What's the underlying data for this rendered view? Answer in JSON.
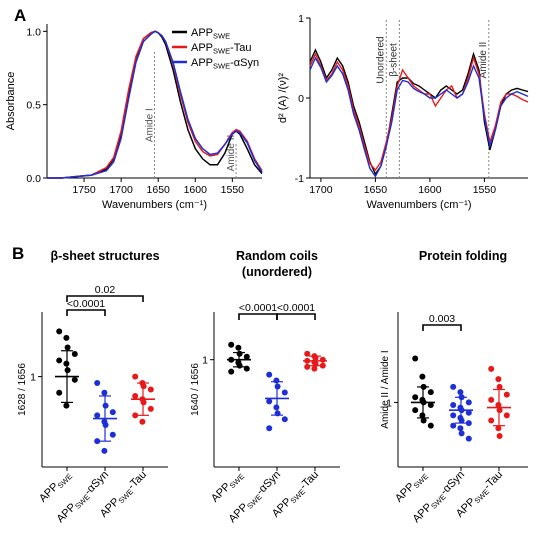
{
  "panel_labels": {
    "a": "A",
    "b": "B"
  },
  "colors": {
    "black": "#000000",
    "red": "#e8191b",
    "blue": "#1e2fd6",
    "grey": "#888888"
  },
  "chart_data": [
    {
      "id": "absorbance",
      "type": "line",
      "ylabel": "Absorbance",
      "xlabel": "Wavenumbers (cm⁻¹)",
      "xlim": [
        1800,
        1510
      ],
      "xticks": [
        1750,
        1700,
        1650,
        1600,
        1550
      ],
      "xtick_labels": [
        "1750",
        "1700",
        "1650",
        "1600",
        "1550"
      ],
      "ylim": [
        0,
        1.05
      ],
      "yticks": [
        0.0,
        0.5,
        1.0
      ],
      "ytick_labels": [
        "0.0",
        "0.5",
        "1.0"
      ],
      "annotations": [
        {
          "label": "Amide I",
          "x": 1655
        },
        {
          "label": "Amide II",
          "x": 1545
        }
      ],
      "legend": {
        "position": "top-right",
        "entries": [
          {
            "base": "APP",
            "sub": "SWE",
            "suffix": "",
            "color": "#000000"
          },
          {
            "base": "APP",
            "sub": "SWE",
            "suffix": "-Tau",
            "color": "#e8191b"
          },
          {
            "base": "APP",
            "sub": "SWE",
            "suffix": "-αSyn",
            "color": "#1e2fd6"
          }
        ]
      },
      "series": [
        {
          "color": "#000000",
          "x": [
            1800,
            1780,
            1760,
            1740,
            1720,
            1710,
            1700,
            1690,
            1680,
            1670,
            1660,
            1654,
            1650,
            1645,
            1640,
            1630,
            1620,
            1610,
            1600,
            1590,
            1580,
            1570,
            1560,
            1550,
            1545,
            1540,
            1530,
            1520,
            1510
          ],
          "y": [
            0.0,
            0.0,
            0.01,
            0.02,
            0.06,
            0.13,
            0.3,
            0.58,
            0.82,
            0.95,
            0.99,
            1.0,
            0.99,
            0.96,
            0.91,
            0.74,
            0.52,
            0.33,
            0.2,
            0.13,
            0.09,
            0.09,
            0.17,
            0.3,
            0.32,
            0.3,
            0.2,
            0.09,
            0.03
          ]
        },
        {
          "color": "#e8191b",
          "x": [
            1800,
            1780,
            1760,
            1740,
            1720,
            1710,
            1700,
            1690,
            1680,
            1670,
            1660,
            1654,
            1650,
            1645,
            1640,
            1630,
            1620,
            1610,
            1600,
            1590,
            1580,
            1570,
            1560,
            1550,
            1545,
            1540,
            1530,
            1520,
            1510
          ],
          "y": [
            0.0,
            0.0,
            0.01,
            0.02,
            0.07,
            0.14,
            0.32,
            0.6,
            0.83,
            0.95,
            0.99,
            1.0,
            0.99,
            0.97,
            0.93,
            0.78,
            0.57,
            0.38,
            0.25,
            0.18,
            0.15,
            0.16,
            0.23,
            0.31,
            0.33,
            0.32,
            0.25,
            0.13,
            0.05
          ]
        },
        {
          "color": "#1e2fd6",
          "x": [
            1800,
            1780,
            1760,
            1740,
            1720,
            1710,
            1700,
            1690,
            1680,
            1670,
            1660,
            1654,
            1650,
            1645,
            1640,
            1630,
            1620,
            1610,
            1600,
            1590,
            1580,
            1570,
            1560,
            1550,
            1545,
            1540,
            1530,
            1520,
            1510
          ],
          "y": [
            0.0,
            0.0,
            0.01,
            0.02,
            0.05,
            0.11,
            0.27,
            0.54,
            0.79,
            0.93,
            0.98,
            1.0,
            0.99,
            0.97,
            0.93,
            0.79,
            0.59,
            0.4,
            0.27,
            0.2,
            0.16,
            0.17,
            0.23,
            0.3,
            0.32,
            0.31,
            0.24,
            0.12,
            0.04
          ]
        }
      ]
    },
    {
      "id": "second-derivative",
      "type": "line",
      "ylabel": "d² (A) /(ν)²",
      "xlabel": "Wavenumbers (cm⁻¹)",
      "xlim": [
        1710,
        1510
      ],
      "xticks": [
        1700,
        1650,
        1600,
        1550
      ],
      "xtick_labels": [
        "1700",
        "1650",
        "1600",
        "1550"
      ],
      "ylim": [
        -1,
        1
      ],
      "yticks": [
        -1,
        0,
        1
      ],
      "ytick_labels": [
        "-1",
        "0",
        "1"
      ],
      "annotations": [
        {
          "label": "Unordered",
          "x": 1640
        },
        {
          "label": "β-sheet",
          "x": 1628
        },
        {
          "label": "Amide II",
          "x": 1546
        }
      ],
      "series": [
        {
          "color": "#000000",
          "x": [
            1710,
            1705,
            1700,
            1695,
            1690,
            1685,
            1680,
            1675,
            1670,
            1665,
            1660,
            1655,
            1650,
            1645,
            1640,
            1635,
            1630,
            1625,
            1620,
            1615,
            1610,
            1605,
            1600,
            1595,
            1590,
            1585,
            1580,
            1575,
            1570,
            1565,
            1560,
            1555,
            1550,
            1545,
            1540,
            1535,
            1530,
            1525,
            1520,
            1515,
            1510
          ],
          "y": [
            0.45,
            0.6,
            0.45,
            0.25,
            0.35,
            0.5,
            0.4,
            0.2,
            -0.1,
            -0.3,
            -0.55,
            -0.8,
            -0.95,
            -0.85,
            -0.6,
            -0.2,
            0.2,
            0.25,
            0.25,
            0.18,
            0.15,
            0.1,
            0.05,
            0.0,
            0.1,
            0.15,
            0.1,
            0.05,
            0.1,
            0.3,
            0.55,
            0.35,
            -0.3,
            -0.65,
            -0.4,
            -0.1,
            0.05,
            0.1,
            0.12,
            0.1,
            0.08
          ]
        },
        {
          "color": "#e8191b",
          "x": [
            1710,
            1705,
            1700,
            1695,
            1690,
            1685,
            1680,
            1675,
            1670,
            1665,
            1660,
            1655,
            1650,
            1645,
            1640,
            1635,
            1630,
            1625,
            1620,
            1615,
            1610,
            1605,
            1600,
            1595,
            1590,
            1585,
            1580,
            1575,
            1570,
            1565,
            1560,
            1555,
            1550,
            1545,
            1540,
            1535,
            1530,
            1525,
            1520,
            1515,
            1510
          ],
          "y": [
            0.4,
            0.55,
            0.4,
            0.22,
            0.3,
            0.45,
            0.35,
            0.15,
            -0.15,
            -0.35,
            -0.6,
            -0.82,
            -0.9,
            -0.8,
            -0.55,
            -0.25,
            0.15,
            0.35,
            0.25,
            0.15,
            0.1,
            0.05,
            0.05,
            -0.1,
            0.0,
            0.1,
            0.15,
            0.0,
            0.05,
            0.25,
            0.5,
            0.3,
            -0.2,
            -0.55,
            -0.35,
            -0.05,
            0.05,
            0.05,
            0.02,
            -0.02,
            -0.05
          ]
        },
        {
          "color": "#1e2fd6",
          "x": [
            1710,
            1705,
            1700,
            1695,
            1690,
            1685,
            1680,
            1675,
            1670,
            1665,
            1660,
            1655,
            1650,
            1645,
            1640,
            1635,
            1630,
            1625,
            1620,
            1615,
            1610,
            1605,
            1600,
            1595,
            1590,
            1585,
            1580,
            1575,
            1570,
            1565,
            1560,
            1555,
            1550,
            1545,
            1540,
            1535,
            1530,
            1525,
            1520,
            1515,
            1510
          ],
          "y": [
            0.35,
            0.5,
            0.38,
            0.2,
            0.28,
            0.4,
            0.3,
            0.1,
            -0.2,
            -0.4,
            -0.65,
            -0.88,
            -0.98,
            -0.85,
            -0.6,
            -0.3,
            0.1,
            0.22,
            0.2,
            0.12,
            0.08,
            0.05,
            0.0,
            0.0,
            0.05,
            0.1,
            0.05,
            0.0,
            0.05,
            0.2,
            0.4,
            0.25,
            -0.25,
            -0.6,
            -0.4,
            -0.1,
            0.0,
            0.05,
            0.08,
            0.05,
            0.02
          ]
        }
      ]
    },
    {
      "id": "beta-sheet",
      "type": "scatter",
      "title": "β-sheet structures",
      "ylabel": "1628 / 1656",
      "ylim": [
        0.72,
        1.2
      ],
      "yticks": [
        1
      ],
      "ytick_labels": [
        "1"
      ],
      "categories": [
        {
          "base": "APP",
          "sub": "SWE",
          "suffix": ""
        },
        {
          "base": "APP",
          "sub": "SWE",
          "suffix": "-αSyn"
        },
        {
          "base": "APP",
          "sub": "SWE",
          "suffix": "-Tau"
        }
      ],
      "groups": [
        {
          "color": "#000000",
          "mean": 1.0,
          "sd": 0.08,
          "values": [
            1.14,
            1.12,
            1.09,
            1.07,
            1.05,
            1.04,
            1.02,
            0.99,
            0.95,
            0.91
          ]
        },
        {
          "color": "#1e2fd6",
          "mean": 0.87,
          "sd": 0.07,
          "values": [
            0.98,
            0.95,
            0.91,
            0.89,
            0.88,
            0.86,
            0.85,
            0.82,
            0.8,
            0.77
          ]
        },
        {
          "color": "#e8191b",
          "mean": 0.93,
          "sd": 0.05,
          "values": [
            1.0,
            0.98,
            0.97,
            0.96,
            0.94,
            0.93,
            0.92,
            0.9,
            0.88,
            0.86
          ]
        }
      ],
      "comparisons": [
        {
          "from": 0,
          "to": 1,
          "label": "<0.0001"
        },
        {
          "from": 0,
          "to": 2,
          "label": "0.02"
        }
      ]
    },
    {
      "id": "random-coils",
      "type": "scatter",
      "title": "Random coils",
      "subtitle": "(unordered)",
      "ylabel": "1640 / 1656",
      "ylim": [
        0.82,
        1.08
      ],
      "yticks": [
        1
      ],
      "ytick_labels": [
        "1"
      ],
      "categories": [
        {
          "base": "APP",
          "sub": "SWE",
          "suffix": ""
        },
        {
          "base": "APP",
          "sub": "SWE",
          "suffix": "-αSyn"
        },
        {
          "base": "APP",
          "sub": "SWE",
          "suffix": "-Tau"
        }
      ],
      "groups": [
        {
          "color": "#000000",
          "mean": 1.0,
          "sd": 0.012,
          "values": [
            1.025,
            1.02,
            1.01,
            1.005,
            1.0,
            0.995,
            0.99,
            0.985,
            0.98
          ]
        },
        {
          "color": "#1e2fd6",
          "mean": 0.935,
          "sd": 0.028,
          "values": [
            0.975,
            0.965,
            0.955,
            0.945,
            0.93,
            0.92,
            0.91,
            0.9,
            0.885
          ]
        },
        {
          "color": "#e8191b",
          "mean": 0.998,
          "sd": 0.008,
          "values": [
            1.01,
            1.006,
            1.003,
            1.0,
            0.998,
            0.996,
            0.993,
            0.99,
            0.988,
            0.985
          ]
        }
      ],
      "comparisons": [
        {
          "from": 0,
          "to": 1,
          "label": "<0.0001"
        },
        {
          "from": 1,
          "to": 2,
          "label": "<0.0001"
        }
      ]
    },
    {
      "id": "protein-folding",
      "type": "scatter",
      "title": "Protein folding",
      "ylabel": "Amide  II / Amide  I",
      "ylim": [
        0.75,
        1.35
      ],
      "yticks": [
        1
      ],
      "ytick_labels": [
        "1"
      ],
      "categories": [
        {
          "base": "APP",
          "sub": "SWE",
          "suffix": ""
        },
        {
          "base": "APP",
          "sub": "SWE",
          "suffix": "-αSyn"
        },
        {
          "base": "APP",
          "sub": "SWE",
          "suffix": "-Tau"
        }
      ],
      "groups": [
        {
          "color": "#000000",
          "mean": 1.0,
          "sd": 0.06,
          "values": [
            1.17,
            1.1,
            1.06,
            1.04,
            1.02,
            1.01,
            1.0,
            0.99,
            0.97,
            0.95,
            0.93,
            0.91
          ]
        },
        {
          "color": "#1e2fd6",
          "mean": 0.97,
          "sd": 0.05,
          "values": [
            1.06,
            1.04,
            1.02,
            1.0,
            0.99,
            0.98,
            0.97,
            0.96,
            0.95,
            0.94,
            0.93,
            0.92,
            0.91,
            0.9,
            0.88,
            0.86
          ]
        },
        {
          "color": "#e8191b",
          "mean": 0.98,
          "sd": 0.07,
          "values": [
            1.13,
            1.09,
            1.06,
            1.03,
            1.01,
            0.99,
            0.97,
            0.95,
            0.93,
            0.9,
            0.87
          ]
        }
      ],
      "comparisons": [
        {
          "from": 0,
          "to": 1,
          "label": "0.003"
        }
      ]
    }
  ]
}
